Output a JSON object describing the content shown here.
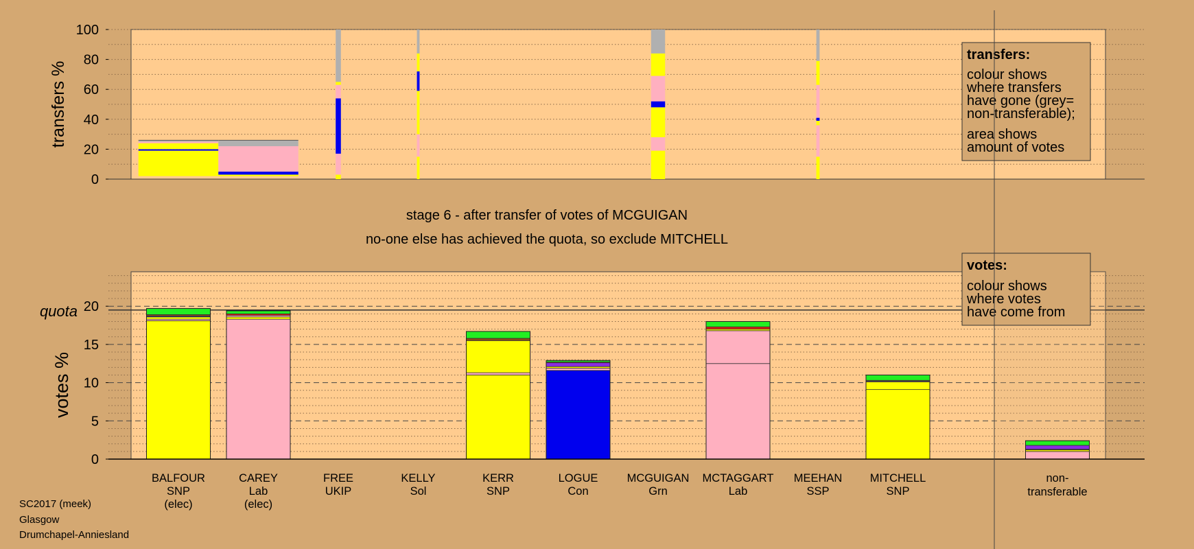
{
  "chart_data": [
    {
      "type": "bar",
      "ylabel": "transfers %",
      "ylim": [
        0,
        100
      ],
      "yticks": [
        0,
        20,
        40,
        60,
        80,
        100
      ],
      "legend": {
        "title": "transfers:",
        "lines_a": [
          "colour shows",
          "where transfers",
          "have gone (grey=",
          "non-transferable);"
        ],
        "lines_b": [
          "area shows",
          "amount of votes"
        ]
      },
      "transfers": [
        {
          "candidate": "BALFOUR",
          "relative_width": 1.0,
          "segments": [
            {
              "party": "SNP",
              "from": 2,
              "to": 19
            },
            {
              "party": "Con",
              "from": 19,
              "to": 20
            },
            {
              "party": "SNP",
              "from": 20,
              "to": 24
            },
            {
              "party": "Lab",
              "from": 24,
              "to": 25
            },
            {
              "party": "nt",
              "from": 25,
              "to": 26
            }
          ]
        },
        {
          "candidate": "CAREY",
          "relative_width": 1.0,
          "segments": [
            {
              "party": "SNP",
              "from": 2,
              "to": 3
            },
            {
              "party": "Con",
              "from": 3,
              "to": 5
            },
            {
              "party": "Lab",
              "from": 5,
              "to": 22
            },
            {
              "party": "nt",
              "from": 22,
              "to": 26
            }
          ]
        },
        {
          "candidate": "FREE",
          "relative_width": 0.06,
          "segments": [
            {
              "party": "SNP",
              "from": 0,
              "to": 3
            },
            {
              "party": "Lab",
              "from": 3,
              "to": 17
            },
            {
              "party": "Con",
              "from": 17,
              "to": 54
            },
            {
              "party": "Lab",
              "from": 54,
              "to": 63
            },
            {
              "party": "SNP",
              "from": 63,
              "to": 65
            },
            {
              "party": "nt",
              "from": 65,
              "to": 100
            }
          ]
        },
        {
          "candidate": "KELLY",
          "relative_width": 0.02,
          "segments": [
            {
              "party": "SNP",
              "from": 0,
              "to": 15
            },
            {
              "party": "Lab",
              "from": 15,
              "to": 30
            },
            {
              "party": "SNP",
              "from": 30,
              "to": 59
            },
            {
              "party": "Con",
              "from": 59,
              "to": 72
            },
            {
              "party": "SNP",
              "from": 72,
              "to": 84
            },
            {
              "party": "nt",
              "from": 84,
              "to": 100
            }
          ]
        },
        {
          "candidate": "MCGUIGAN",
          "relative_width": 0.22,
          "segments": [
            {
              "party": "SNP",
              "from": 0,
              "to": 19
            },
            {
              "party": "Lab",
              "from": 19,
              "to": 28
            },
            {
              "party": "SNP",
              "from": 28,
              "to": 48
            },
            {
              "party": "Con",
              "from": 48,
              "to": 52
            },
            {
              "party": "Lab",
              "from": 52,
              "to": 69
            },
            {
              "party": "SNP",
              "from": 69,
              "to": 84
            },
            {
              "party": "nt",
              "from": 84,
              "to": 100
            }
          ]
        },
        {
          "candidate": "MEEHAN",
          "relative_width": 0.03,
          "segments": [
            {
              "party": "SNP",
              "from": 0,
              "to": 15
            },
            {
              "party": "Lab",
              "from": 15,
              "to": 36
            },
            {
              "party": "SNP",
              "from": 36,
              "to": 39
            },
            {
              "party": "Con",
              "from": 39,
              "to": 41
            },
            {
              "party": "Lab",
              "from": 41,
              "to": 63
            },
            {
              "party": "SNP",
              "from": 63,
              "to": 79
            },
            {
              "party": "nt",
              "from": 79,
              "to": 100
            }
          ]
        }
      ]
    },
    {
      "type": "bar",
      "ylabel": "votes %",
      "ylim": [
        0,
        25
      ],
      "yticks": [
        0,
        5,
        10,
        15,
        20
      ],
      "quota": 19.5,
      "quota_label": "quota",
      "legend": {
        "title": "votes:",
        "lines": [
          "colour shows",
          "where votes",
          "have come from"
        ]
      },
      "categories": [
        "BALFOUR",
        "CAREY",
        "FREE",
        "KELLY",
        "KERR",
        "LOGUE",
        "MCGUIGAN",
        "MCTAGGART",
        "MEEHAN",
        "MITCHELL",
        "non-transferable"
      ],
      "parties": [
        "SNP",
        "Lab",
        "UKIP",
        "Sol",
        "SNP",
        "Con",
        "Grn",
        "Lab",
        "SSP",
        "SNP",
        ""
      ],
      "notes": [
        "(elec)",
        "(elec)",
        "",
        "",
        "",
        "",
        "",
        "",
        "",
        "",
        ""
      ],
      "stacks": [
        [
          {
            "party": "SNP",
            "value": 18.1
          },
          {
            "party": "Lab",
            "value": 0.2
          },
          {
            "party": "SNP",
            "value": 0.3
          },
          {
            "party": "Con",
            "value": 0.1
          },
          {
            "party": "Sol",
            "value": 0.2
          },
          {
            "party": "Grn",
            "value": 0.8
          }
        ],
        [
          {
            "party": "Lab",
            "value": 18.3
          },
          {
            "party": "SNP",
            "value": 0.3
          },
          {
            "party": "Lab",
            "value": 0.2
          },
          {
            "party": "SSP",
            "value": 0.2
          },
          {
            "party": "Grn",
            "value": 0.4
          }
        ],
        [],
        [],
        [
          {
            "party": "SNP",
            "value": 11.0
          },
          {
            "party": "Lab",
            "value": 0.3
          },
          {
            "party": "SNP",
            "value": 4.2
          },
          {
            "party": "Sol",
            "value": 0.3
          },
          {
            "party": "Grn",
            "value": 0.9
          }
        ],
        [
          {
            "party": "Con",
            "value": 11.6
          },
          {
            "party": "Lab",
            "value": 0.3
          },
          {
            "party": "SNP",
            "value": 0.2
          },
          {
            "party": "UKIP",
            "value": 0.5
          },
          {
            "party": "Sol",
            "value": 0.1
          },
          {
            "party": "Grn",
            "value": 0.2
          }
        ],
        [],
        [
          {
            "party": "Lab",
            "value": 12.5
          },
          {
            "party": "Lab",
            "value": 4.3
          },
          {
            "party": "SNP",
            "value": 0.2
          },
          {
            "party": "SSP",
            "value": 0.3
          },
          {
            "party": "Grn",
            "value": 0.7
          }
        ],
        [],
        [
          {
            "party": "SNP",
            "value": 9.1
          },
          {
            "party": "SNP",
            "value": 1.0
          },
          {
            "party": "Lab",
            "value": 0.1
          },
          {
            "party": "Sol",
            "value": 0.1
          },
          {
            "party": "Grn",
            "value": 0.7
          }
        ],
        [
          {
            "party": "Lab",
            "value": 1.0
          },
          {
            "party": "SNP",
            "value": 0.2
          },
          {
            "party": "Sol",
            "value": 0.1
          },
          {
            "party": "UKIP",
            "value": 0.5
          },
          {
            "party": "Grn",
            "value": 0.6
          }
        ]
      ]
    }
  ],
  "party_colors": {
    "SNP": "#ffff00",
    "Lab": "#ffb0c0",
    "Con": "#0000ee",
    "UKIP": "#8a2be2",
    "Sol": "#8a4a1a",
    "Grn": "#22ee22",
    "SSP": "#e02010",
    "nt": "#b0b0b0"
  },
  "stage_text": "stage 6 - after transfer of votes of MCGUIGAN",
  "action_text": "no-one else has achieved the quota, so exclude MITCHELL",
  "footer": [
    "SC2017 (meek)",
    "Glasgow",
    "Drumchapel-Anniesland"
  ]
}
